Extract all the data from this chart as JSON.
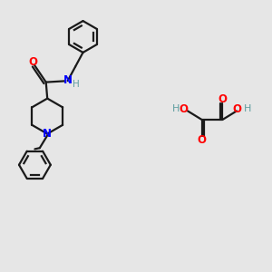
{
  "bg_color": "#e6e6e6",
  "bond_color": "#1a1a1a",
  "N_color": "#0000ff",
  "O_color": "#ff0000",
  "H_color": "#5f9ea0",
  "H_color2": "#5f9ea0",
  "line_width": 1.6,
  "fig_width": 3.0,
  "fig_height": 3.0,
  "dpi": 100,
  "xlim": [
    0,
    10
  ],
  "ylim": [
    0,
    10
  ],
  "hex_r": 0.58,
  "pip_r": 0.65
}
